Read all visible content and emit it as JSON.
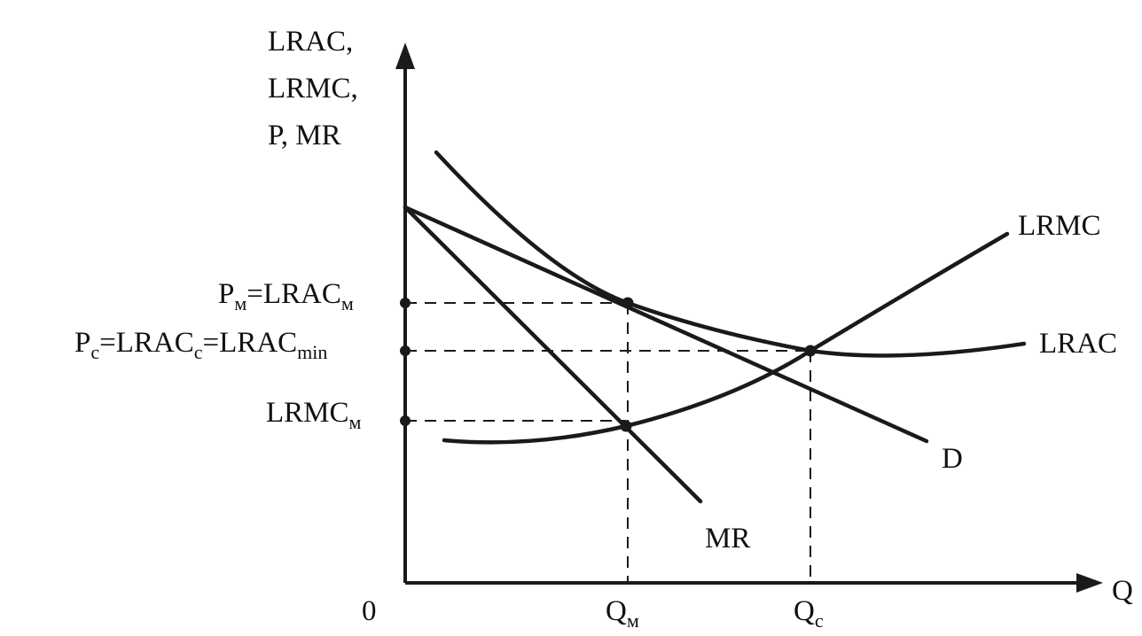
{
  "axes": {
    "y_label_lines": [
      "LRAC,",
      "LRMC,",
      "P,  MR"
    ],
    "x_label": "Q",
    "origin_label": "0"
  },
  "y_ticks": {
    "pm": {
      "main": "P",
      "sub1": "м",
      "mid": "=LRAC",
      "sub2": "м"
    },
    "pc": {
      "main": "P",
      "sub1": "c",
      "mid": "=LRAC",
      "sub2": "c",
      "mid2": "=LRAC",
      "sub3": "min"
    },
    "lrmcm": {
      "main": "LRMC",
      "sub1": "м"
    }
  },
  "x_ticks": {
    "qm": {
      "main": "Q",
      "sub": "м"
    },
    "qc": {
      "main": "Q",
      "sub": "c"
    }
  },
  "curve_labels": {
    "lrmc": "LRMC",
    "lrac": "LRAC",
    "d": "D",
    "mr": "MR"
  }
}
